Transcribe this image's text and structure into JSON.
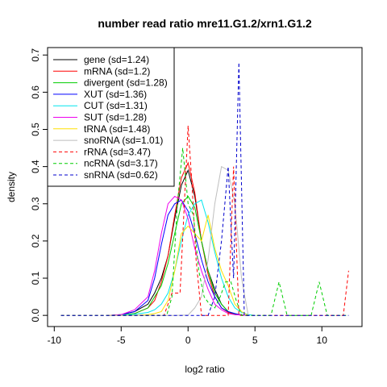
{
  "chart_data": {
    "type": "line",
    "title": "number read ratio mre11.G1.2/xrn1.G1.2",
    "xlabel": "log2 ratio",
    "ylabel": "density",
    "xlim": [
      -10.5,
      13
    ],
    "ylim": [
      -0.03,
      0.72
    ],
    "x_ticks": [
      -10,
      -5,
      0,
      5,
      10
    ],
    "x_tick_labels": [
      "-10",
      "-5",
      "0",
      "5",
      "10"
    ],
    "y_ticks": [
      0.0,
      0.1,
      0.2,
      0.3,
      0.4,
      0.5,
      0.6,
      0.7
    ],
    "y_tick_labels": [
      "0.0",
      "0.1",
      "0.2",
      "0.3",
      "0.4",
      "0.5",
      "0.6",
      "0.7"
    ],
    "grid": false,
    "legend_position": "top-left",
    "series": [
      {
        "name": "gene (sd=1.24)",
        "color": "#000000",
        "dashed": false,
        "x": [
          -6,
          -5,
          -4,
          -3,
          -2.5,
          -2,
          -1.5,
          -1,
          -0.5,
          0,
          0.5,
          1,
          1.5,
          2,
          2.5,
          3,
          3.5,
          4,
          4.5
        ],
        "y": [
          0,
          0.002,
          0.01,
          0.03,
          0.06,
          0.1,
          0.16,
          0.26,
          0.35,
          0.39,
          0.32,
          0.2,
          0.12,
          0.07,
          0.03,
          0.01,
          0.003,
          0.001,
          0
        ]
      },
      {
        "name": "mRNA (sd=1.2)",
        "color": "#ff0000",
        "dashed": false,
        "x": [
          -6,
          -5,
          -4,
          -3,
          -2.5,
          -2,
          -1.5,
          -1,
          -0.5,
          0,
          0.5,
          1,
          1.5,
          2,
          2.5,
          3,
          3.5,
          4,
          4.5
        ],
        "y": [
          0,
          0.001,
          0.005,
          0.02,
          0.04,
          0.09,
          0.16,
          0.27,
          0.37,
          0.41,
          0.33,
          0.2,
          0.11,
          0.05,
          0.02,
          0.008,
          0.002,
          0.001,
          0
        ]
      },
      {
        "name": "divergent (sd=1.28)",
        "color": "#00cd00",
        "dashed": false,
        "x": [
          -6,
          -5,
          -4,
          -3,
          -2.5,
          -2,
          -1.5,
          -1,
          -0.5,
          0,
          0.5,
          1,
          1.5,
          2,
          2.5,
          3,
          3.5,
          4,
          4.5
        ],
        "y": [
          0,
          0.001,
          0.005,
          0.02,
          0.05,
          0.08,
          0.14,
          0.22,
          0.3,
          0.32,
          0.29,
          0.2,
          0.12,
          0.06,
          0.03,
          0.01,
          0.004,
          0.001,
          0
        ]
      },
      {
        "name": "XUT (sd=1.36)",
        "color": "#0000ff",
        "dashed": false,
        "x": [
          -6,
          -5,
          -4,
          -3,
          -2.5,
          -2,
          -1.5,
          -1,
          -0.5,
          0,
          0.5,
          1,
          1.5,
          2,
          2.5,
          3,
          3.5,
          4,
          4.5
        ],
        "y": [
          0,
          0.002,
          0.01,
          0.04,
          0.1,
          0.19,
          0.27,
          0.3,
          0.31,
          0.28,
          0.22,
          0.15,
          0.09,
          0.05,
          0.02,
          0.01,
          0.005,
          0.001,
          0
        ]
      },
      {
        "name": "CUT (sd=1.31)",
        "color": "#00e5ee",
        "dashed": false,
        "x": [
          -6,
          -5,
          -4,
          -3,
          -2.5,
          -2,
          -1.5,
          -1,
          -0.5,
          0,
          0.5,
          1,
          1.5,
          2,
          2.5,
          3,
          3.5,
          4,
          4.5,
          5
        ],
        "y": [
          0,
          0.001,
          0.003,
          0.008,
          0.015,
          0.03,
          0.06,
          0.12,
          0.2,
          0.27,
          0.3,
          0.31,
          0.25,
          0.17,
          0.1,
          0.05,
          0.02,
          0.008,
          0.002,
          0
        ]
      },
      {
        "name": "SUT (sd=1.28)",
        "color": "#ee00ee",
        "dashed": false,
        "x": [
          -6,
          -5,
          -4,
          -3,
          -2.5,
          -2,
          -1.5,
          -1,
          -0.5,
          0,
          0.5,
          1,
          1.5,
          2,
          2.5,
          3,
          3.5,
          4,
          4.5
        ],
        "y": [
          0,
          0.002,
          0.015,
          0.05,
          0.12,
          0.22,
          0.3,
          0.32,
          0.31,
          0.26,
          0.18,
          0.12,
          0.07,
          0.03,
          0.015,
          0.005,
          0.002,
          0.001,
          0
        ]
      },
      {
        "name": "tRNA (sd=1.48)",
        "color": "#ffe000",
        "dashed": false,
        "x": [
          -6,
          -5,
          -4,
          -3,
          -2.5,
          -2,
          -1.5,
          -1,
          -0.5,
          0,
          0.5,
          1,
          1.5,
          2,
          2.5,
          3,
          3.5,
          4,
          4.5
        ],
        "y": [
          0,
          0,
          0,
          0.002,
          0.005,
          0.01,
          0.04,
          0.12,
          0.22,
          0.24,
          0.22,
          0.2,
          0.27,
          0.18,
          0.12,
          0.08,
          0.03,
          0.01,
          0
        ]
      },
      {
        "name": "snoRNA (sd=1.01)",
        "color": "#bebebe",
        "dashed": false,
        "x": [
          -6,
          -5,
          -4,
          -3,
          -2,
          -1,
          0,
          0.5,
          1,
          1.5,
          2,
          2.5,
          3,
          3.5,
          4,
          4.5
        ],
        "y": [
          0,
          0,
          0,
          0,
          0,
          0,
          0.001,
          0.02,
          0.05,
          0.15,
          0.3,
          0.4,
          0.39,
          0.3,
          0.1,
          0
        ]
      },
      {
        "name": "rRNA (sd=3.47)",
        "color": "#ff0000",
        "dashed": true,
        "x": [
          -9.5,
          -3,
          -1.8,
          -1.2,
          -0.6,
          0,
          0.3,
          0.6,
          1.0,
          1.4,
          2.0,
          2.6,
          3.0,
          3.4,
          3.8,
          4.2,
          4.6,
          5.0,
          5.4,
          6,
          8,
          10,
          11.0,
          11.6,
          12.0
        ],
        "y": [
          0,
          0,
          0,
          0.06,
          0.06,
          0.51,
          0.35,
          0.15,
          0.0,
          0.0,
          0.0,
          0.0,
          0.0,
          0.4,
          0.0,
          0.0,
          0.0,
          0.0,
          0.0,
          0,
          0,
          0,
          0.0,
          0.0,
          0.12
        ]
      },
      {
        "name": "ncRNA (sd=3.17)",
        "color": "#00cd00",
        "dashed": true,
        "x": [
          -9.5,
          -3,
          -1.6,
          -1.2,
          -0.8,
          -0.4,
          0,
          0.4,
          0.8,
          1.2,
          1.6,
          2.0,
          2.4,
          2.8,
          3.2,
          3.6,
          4.0,
          4.4,
          5.0,
          5.6,
          6.2,
          6.8,
          7.4,
          8.0,
          8.6,
          9.2,
          9.8,
          10.4,
          11.0,
          12.0
        ],
        "y": [
          0,
          0,
          0,
          0.05,
          0.3,
          0.45,
          0.3,
          0.27,
          0.12,
          0.05,
          0.03,
          0.02,
          0.05,
          0.09,
          0.09,
          0.04,
          0.0,
          0.0,
          0.0,
          0.0,
          0.0,
          0.09,
          0.0,
          0.0,
          0.0,
          0.0,
          0.09,
          0.0,
          0.0,
          0
        ]
      },
      {
        "name": "snRNA (sd=0.62)",
        "color": "#0000cd",
        "dashed": true,
        "x": [
          -9.5,
          -2,
          0,
          1.0,
          1.5,
          2.0,
          2.5,
          3.0,
          3.4,
          3.8,
          4.2,
          4.6,
          5.0,
          12.0
        ],
        "y": [
          0,
          0,
          0,
          0,
          0.0,
          0.05,
          0.2,
          0.4,
          0.1,
          0.68,
          0.0,
          0.0,
          0,
          0
        ]
      }
    ]
  }
}
